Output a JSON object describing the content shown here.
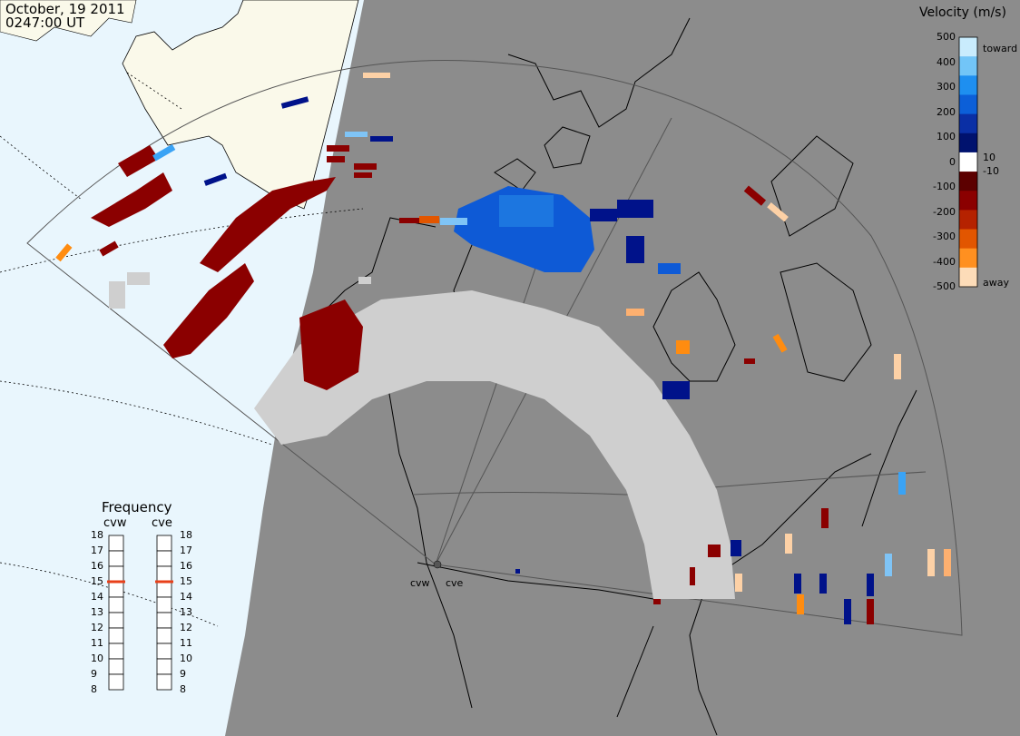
{
  "header": {
    "date": "October, 19 2011",
    "time": "0247:00 UT"
  },
  "colors": {
    "ocean": "#e9f6fd",
    "night": "#8c8c8c",
    "land_day": "#faf9ea",
    "gray_scatter": "#cfcfcf",
    "dark_red": "#8b0000",
    "dark_blue": "#00128a",
    "mid_blue": "#0e5ad6",
    "light_blue": "#7fc4f6",
    "orange": "#ff8c10",
    "peach": "#fdd1a6"
  },
  "radars": {
    "west": "cvw",
    "east": "cve"
  },
  "frequency": {
    "title": "Frequency",
    "columns": [
      "cvw",
      "cve"
    ],
    "ticks": [
      "18",
      "17",
      "16",
      "15",
      "14",
      "13",
      "12",
      "11",
      "10",
      "9",
      "8"
    ],
    "current": {
      "cvw": 15,
      "cve": 15
    }
  },
  "velocity_scale": {
    "title": "Velocity (m/s)",
    "ticks": [
      "500",
      "400",
      "300",
      "200",
      "100",
      "0",
      "-100",
      "-200",
      "-300",
      "-400",
      "-500"
    ],
    "inner_labels": [
      "10",
      "-10"
    ],
    "toward_label": "toward",
    "away_label": "away",
    "gradient": [
      "#c9ecfd",
      "#72c5f7",
      "#1e8ff0",
      "#0c5fd8",
      "#0a2fa5",
      "#00126e",
      "#ffffff",
      "#5c0000",
      "#8b0000",
      "#b52200",
      "#e25600",
      "#ff9020",
      "#fddcb8"
    ]
  }
}
